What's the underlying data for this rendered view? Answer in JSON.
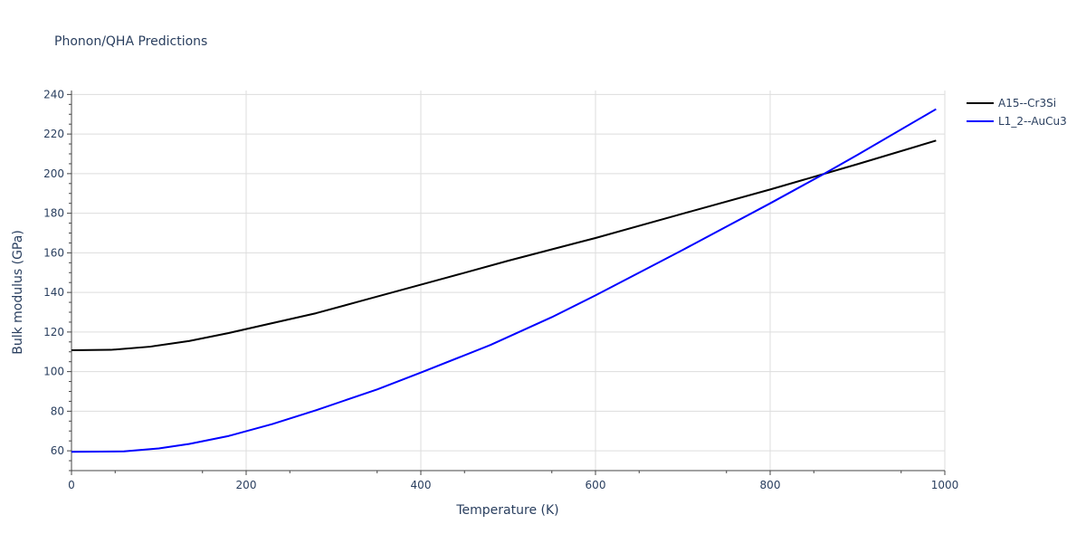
{
  "chart_data": {
    "type": "line",
    "title": "Phonon/QHA Predictions",
    "xlabel": "Temperature (K)",
    "ylabel": "Bulk modulus (GPa)",
    "xlim": [
      0,
      1000
    ],
    "ylim": [
      50,
      242
    ],
    "x_ticks": [
      "0",
      "200",
      "400",
      "600",
      "800",
      "1000"
    ],
    "y_ticks": [
      "60",
      "80",
      "100",
      "120",
      "140",
      "160",
      "180",
      "200",
      "220",
      "240"
    ],
    "grid": true,
    "legend_position": "top-right",
    "series": [
      {
        "name": "A15--Cr3Si",
        "color": "#000000",
        "x": [
          0,
          45,
          90,
          135,
          180,
          225,
          280,
          330,
          380,
          430,
          500,
          600,
          700,
          800,
          900,
          990
        ],
        "y": [
          110.8,
          111.0,
          112.6,
          115.5,
          119.5,
          124.0,
          129.5,
          135.5,
          141.5,
          147.5,
          156.0,
          167.5,
          179.8,
          192.0,
          204.8,
          216.7
        ]
      },
      {
        "name": "L1_2--AuCu3",
        "color": "#0000ff",
        "x": [
          0,
          60,
          100,
          135,
          180,
          230,
          280,
          350,
          400,
          480,
          550,
          600,
          700,
          800,
          860,
          900,
          990
        ],
        "y": [
          59.5,
          59.7,
          61.2,
          63.5,
          67.5,
          73.5,
          80.5,
          91.0,
          99.5,
          113.5,
          127.5,
          138.5,
          161.5,
          185.0,
          199.5,
          209.5,
          232.6
        ]
      }
    ]
  }
}
